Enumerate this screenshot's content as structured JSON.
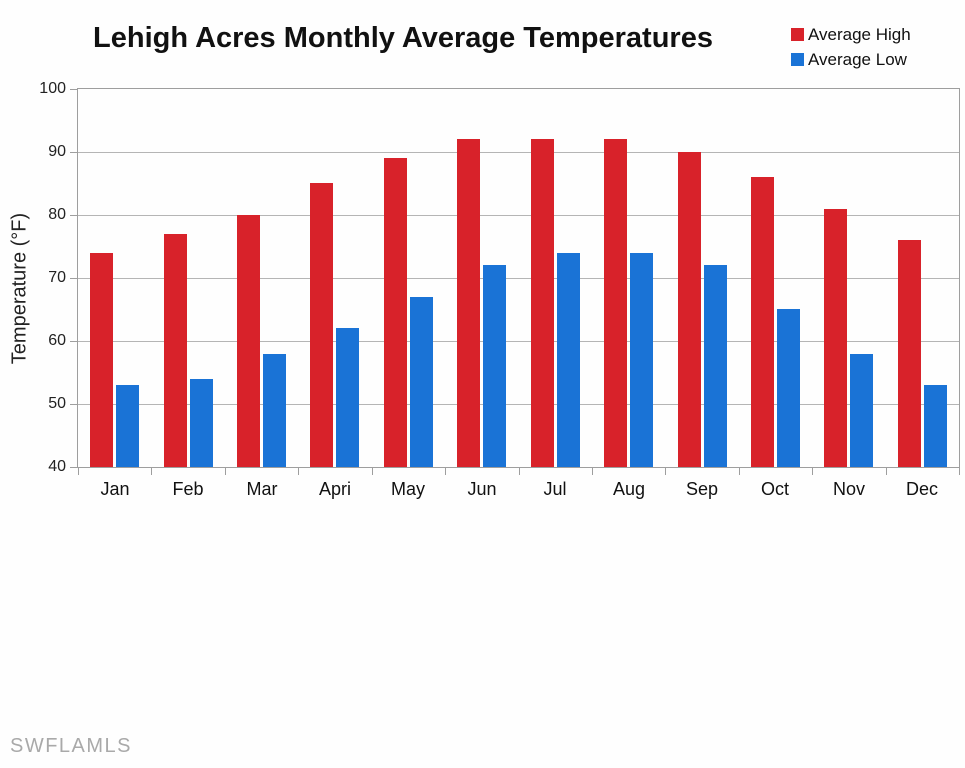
{
  "title": "Lehigh Acres Monthly Average Temperatures",
  "watermark": "SWFLAMLS",
  "colors": {
    "average_high": "#d8222a",
    "average_low": "#1a73d6",
    "gridline": "#b5b5b5",
    "axis": "#9e9e9e"
  },
  "legend": {
    "position": "top-right",
    "items": [
      {
        "label": "Average High",
        "color": "#d8222a"
      },
      {
        "label": "Average Low",
        "color": "#1a73d6"
      }
    ]
  },
  "chart_data": {
    "type": "bar",
    "title": "Lehigh Acres Monthly Average Temperatures",
    "xlabel": "",
    "ylabel": "Temperature (°F)",
    "categories": [
      "Jan",
      "Feb",
      "Mar",
      "Apri",
      "May",
      "Jun",
      "Jul",
      "Aug",
      "Sep",
      "Oct",
      "Nov",
      "Dec"
    ],
    "series": [
      {
        "name": "Average High",
        "color": "#d8222a",
        "values": [
          74,
          77,
          80,
          85,
          89,
          92,
          92,
          92,
          90,
          86,
          81,
          76
        ]
      },
      {
        "name": "Average Low",
        "color": "#1a73d6",
        "values": [
          53,
          54,
          58,
          62,
          67,
          72,
          74,
          74,
          72,
          65,
          58,
          53
        ]
      }
    ],
    "ylim": [
      40,
      100
    ],
    "yticks": [
      40,
      50,
      60,
      70,
      80,
      90,
      100
    ],
    "grid": true,
    "legend_position": "top-right"
  }
}
